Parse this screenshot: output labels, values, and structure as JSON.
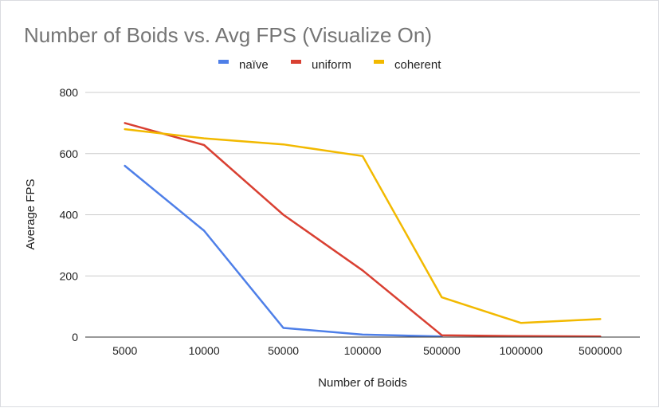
{
  "chart_data": {
    "type": "line",
    "title": "Number of Boids vs. Avg FPS (Visualize On)",
    "xlabel": "Number of Boids",
    "ylabel": "Average FPS",
    "categories": [
      "5000",
      "10000",
      "50000",
      "100000",
      "500000",
      "1000000",
      "5000000"
    ],
    "ylim": [
      0,
      800
    ],
    "yticks": [
      "0",
      "200",
      "400",
      "600",
      "800"
    ],
    "grid": true,
    "legend_position": "top",
    "series": [
      {
        "name": "naïve",
        "color": "#4e7fe8",
        "values": [
          560,
          348,
          30,
          8,
          2,
          null,
          null
        ]
      },
      {
        "name": "uniform",
        "color": "#d94032",
        "values": [
          700,
          628,
          400,
          218,
          6,
          3,
          2
        ]
      },
      {
        "name": "coherent",
        "color": "#f2b900",
        "values": [
          680,
          650,
          630,
          592,
          130,
          46,
          59
        ]
      }
    ]
  }
}
